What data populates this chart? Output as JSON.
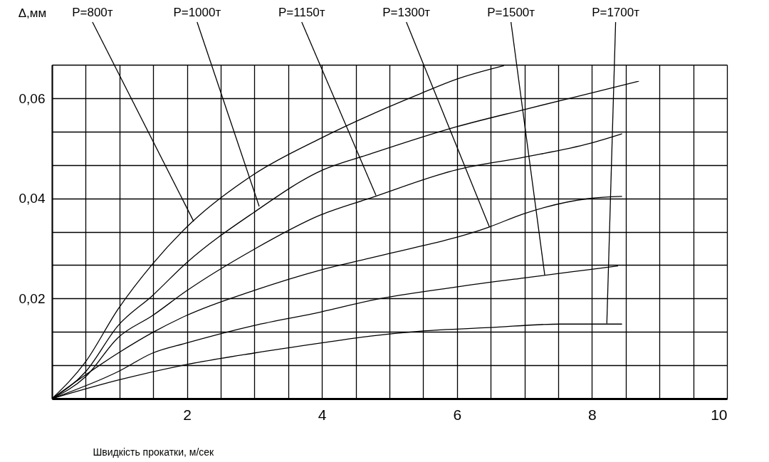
{
  "chart_data": {
    "type": "line",
    "xlabel": "Швидкість прокатки, м/сек",
    "ylabel": "Δ,мм",
    "xlim": [
      0,
      10
    ],
    "ylim": [
      0,
      0.0667
    ],
    "xticks": [
      {
        "value": 0,
        "label": null
      },
      {
        "value": 0.5,
        "label": null
      },
      {
        "value": 1,
        "label": null
      },
      {
        "value": 1.5,
        "label": null
      },
      2,
      {
        "value": 2.5,
        "label": null
      },
      {
        "value": 3,
        "label": null
      },
      {
        "value": 3.5,
        "label": null
      },
      4,
      {
        "value": 4.5,
        "label": null
      },
      {
        "value": 5,
        "label": null
      },
      {
        "value": 5.5,
        "label": null
      },
      6,
      {
        "value": 6.5,
        "label": null
      },
      {
        "value": 7,
        "label": null
      },
      {
        "value": 7.5,
        "label": null
      },
      8,
      {
        "value": 8.5,
        "label": null
      },
      {
        "value": 9,
        "label": null
      },
      {
        "value": 9.5,
        "label": null
      },
      10
    ],
    "yticks": [
      {
        "value": 0,
        "label": null
      },
      {
        "value": 0.0067,
        "label": null
      },
      {
        "value": 0.0133,
        "label": null
      },
      {
        "value": 0.02,
        "label": "0,02"
      },
      {
        "value": 0.0267,
        "label": null
      },
      {
        "value": 0.0333,
        "label": null
      },
      {
        "value": 0.04,
        "label": "0,04"
      },
      {
        "value": 0.0467,
        "label": null
      },
      {
        "value": 0.0533,
        "label": null
      },
      {
        "value": 0.06,
        "label": "0,06"
      },
      {
        "value": 0.0667,
        "label": null
      }
    ],
    "grid": true,
    "legend": false,
    "marker": "none",
    "line_style": "solid",
    "series": [
      {
        "color": "#000000",
        "x": [
          0,
          0.5,
          0.98,
          1.49,
          1.99,
          2.99,
          3.98,
          4.72,
          5.47,
          5.99,
          6.69
        ],
        "values": [
          0,
          0.0074,
          0.0179,
          0.0269,
          0.0342,
          0.0448,
          0.052,
          0.0567,
          0.061,
          0.0638,
          0.0665
        ]
      },
      {
        "color": "#000000",
        "x": [
          0,
          0.5,
          0.98,
          1.49,
          1.99,
          2.99,
          3.98,
          4.72,
          5.99,
          6.98,
          7.97,
          8.69
        ],
        "values": [
          0,
          0.0054,
          0.0146,
          0.0206,
          0.0271,
          0.0372,
          0.0455,
          0.0489,
          0.0543,
          0.0577,
          0.061,
          0.0634
        ]
      },
      {
        "color": "#000000",
        "x": [
          0,
          0.5,
          0.98,
          1.49,
          1.99,
          2.99,
          3.98,
          4.72,
          5.99,
          6.98,
          7.97,
          8.44
        ],
        "values": [
          0,
          0.0044,
          0.0122,
          0.0166,
          0.0215,
          0.0298,
          0.0367,
          0.0401,
          0.0457,
          0.0482,
          0.051,
          0.0529
        ]
      },
      {
        "color": "#000000",
        "x": [
          0,
          0.98,
          1.49,
          1.99,
          2.99,
          3.98,
          4.72,
          6.48,
          6.98,
          7.97,
          8.44
        ],
        "values": [
          0,
          0.0091,
          0.0132,
          0.0166,
          0.0216,
          0.0257,
          0.0281,
          0.0343,
          0.0369,
          0.04,
          0.0404
        ]
      },
      {
        "color": "#000000",
        "x": [
          0,
          0.98,
          1.49,
          1.99,
          2.99,
          3.98,
          4.72,
          5.99,
          6.98,
          7.97,
          8.38
        ],
        "values": [
          0,
          0.0054,
          0.0091,
          0.0111,
          0.0146,
          0.0173,
          0.0196,
          0.0223,
          0.0241,
          0.0258,
          0.0265
        ]
      },
      {
        "color": "#000000",
        "x": [
          0,
          0.98,
          1.99,
          2.99,
          3.98,
          4.72,
          5.47,
          6.48,
          7.53,
          8.44
        ],
        "values": [
          0,
          0.0037,
          0.0068,
          0.0091,
          0.0111,
          0.0125,
          0.0135,
          0.0142,
          0.0149,
          0.0149
        ]
      }
    ],
    "annotations": [
      {
        "text": "P=800т",
        "x": 2.1,
        "y": 0.0354
      },
      {
        "text": "P=1000т",
        "x": 3.07,
        "y": 0.0384
      },
      {
        "text": "P=1150т",
        "x": 4.8,
        "y": 0.0406
      },
      {
        "text": "P=1300т",
        "x": 6.48,
        "y": 0.0343
      },
      {
        "text": "P=1500т",
        "x": 7.3,
        "y": 0.0247
      },
      {
        "text": "P=1700т",
        "x": 8.22,
        "y": 0.015
      }
    ]
  }
}
